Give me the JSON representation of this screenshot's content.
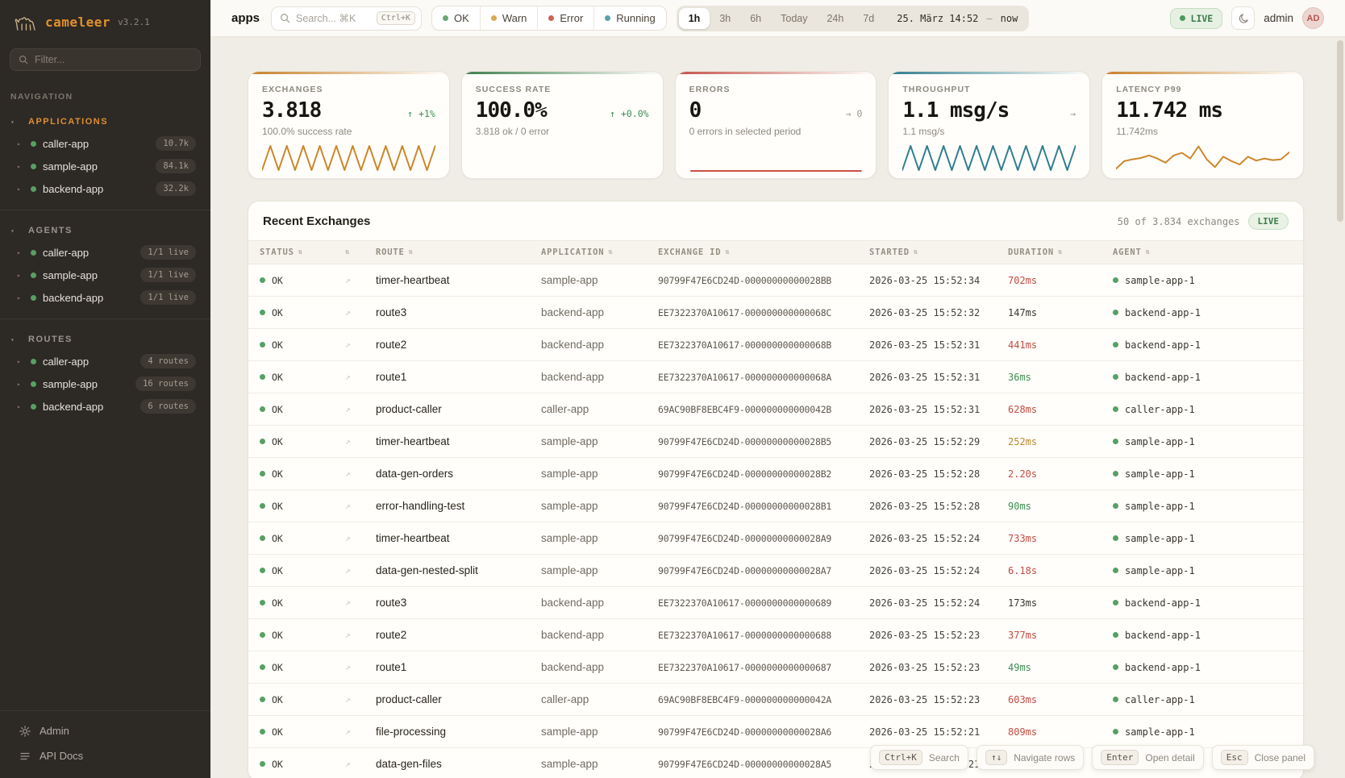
{
  "icons": {
    "sort": "⇅",
    "open_row": "↗",
    "caret_section": "▾",
    "caret_item": "▸"
  },
  "sidebar": {
    "logo": {
      "brand": "cameleer",
      "version": "v3.2.1"
    },
    "filter_placeholder": "Filter...",
    "nav_label": "NAVIGATION",
    "sections": [
      {
        "id": "applications",
        "label": "APPLICATIONS",
        "active": true,
        "items": [
          {
            "name": "caller-app",
            "badge": "10.7k"
          },
          {
            "name": "sample-app",
            "badge": "84.1k"
          },
          {
            "name": "backend-app",
            "badge": "32.2k"
          }
        ]
      },
      {
        "id": "agents",
        "label": "AGENTS",
        "active": false,
        "items": [
          {
            "name": "caller-app",
            "badge": "1/1 live"
          },
          {
            "name": "sample-app",
            "badge": "1/1 live"
          },
          {
            "name": "backend-app",
            "badge": "1/1 live"
          }
        ]
      },
      {
        "id": "routes",
        "label": "ROUTES",
        "active": false,
        "items": [
          {
            "name": "caller-app",
            "badge": "4 routes"
          },
          {
            "name": "sample-app",
            "badge": "16 routes"
          },
          {
            "name": "backend-app",
            "badge": "6 routes"
          }
        ]
      }
    ],
    "footer": [
      {
        "icon": "gear-icon",
        "label": "Admin"
      },
      {
        "icon": "docs-icon",
        "label": "API Docs"
      }
    ]
  },
  "header": {
    "context_label": "apps",
    "search": {
      "placeholder": "Search... ⌘K",
      "shortcut": "Ctrl+K"
    },
    "status_filters": [
      {
        "label": "OK",
        "color": "#6aa574"
      },
      {
        "label": "Warn",
        "color": "#d9a84e"
      },
      {
        "label": "Error",
        "color": "#cc6156"
      },
      {
        "label": "Running",
        "color": "#5b9fae"
      }
    ],
    "time_ranges": [
      {
        "label": "1h",
        "active": true
      },
      {
        "label": "3h",
        "active": false
      },
      {
        "label": "6h",
        "active": false
      },
      {
        "label": "Today",
        "active": false
      },
      {
        "label": "24h",
        "active": false
      },
      {
        "label": "7d",
        "active": false
      }
    ],
    "date_range": {
      "from": "25. März 14:52",
      "separator": "—",
      "to": "now"
    },
    "live_label": "LIVE",
    "user": {
      "name": "admin",
      "initials": "AD"
    }
  },
  "kpis": [
    {
      "label": "EXCHANGES",
      "value": "3.818",
      "delta": "↑ +1%",
      "delta_color": "green",
      "subtitle": "100.0% success rate",
      "accent": "#c8802a",
      "spark": {
        "type": "zigzag",
        "color": "#cc8629"
      }
    },
    {
      "label": "SUCCESS RATE",
      "value": "100.0%",
      "delta": "↑ +0.0%",
      "delta_color": "green",
      "subtitle": "3.818 ok / 0 error",
      "accent": "#3e7d4c",
      "spark": {
        "type": "none",
        "color": ""
      }
    },
    {
      "label": "ERRORS",
      "value": "0",
      "delta": "→ 0",
      "delta_color": "gray",
      "subtitle": "0 errors in selected period",
      "accent": "#c4534a",
      "spark": {
        "type": "flat",
        "color": "#cc4f44"
      }
    },
    {
      "label": "THROUGHPUT",
      "value": "1.1 msg/s",
      "delta": "→",
      "delta_color": "gray",
      "subtitle": "1.1 msg/s",
      "accent": "#2f7e8e",
      "spark": {
        "type": "zigzag",
        "color": "#2f7e8e"
      }
    },
    {
      "label": "LATENCY P99",
      "value": "11.742 ms",
      "delta": "",
      "delta_color": "gray",
      "subtitle": "11.742ms",
      "accent": "#c8802a",
      "spark": {
        "type": "line",
        "color": "#cc8629",
        "points": [
          0.92,
          0.62,
          0.55,
          0.5,
          0.4,
          0.52,
          0.68,
          0.4,
          0.3,
          0.52,
          0.05,
          0.55,
          0.85,
          0.45,
          0.62,
          0.75,
          0.45,
          0.6,
          0.52,
          0.58,
          0.55,
          0.28
        ]
      }
    }
  ],
  "table": {
    "title": "Recent Exchanges",
    "summary": "50 of 3.834 exchanges",
    "live_label": "LIVE",
    "columns": [
      "STATUS",
      "",
      "ROUTE",
      "APPLICATION",
      "EXCHANGE ID",
      "STARTED",
      "DURATION",
      "AGENT"
    ],
    "rows": [
      {
        "status": "OK",
        "route": "timer-heartbeat",
        "application": "sample-app",
        "exchange_id": "90799F47E6CD24D-00000000000028BB",
        "started": "2026-03-25 15:52:34",
        "duration": "702ms",
        "duration_color": "red",
        "agent": "sample-app-1"
      },
      {
        "status": "OK",
        "route": "route3",
        "application": "backend-app",
        "exchange_id": "EE7322370A10617-000000000000068C",
        "started": "2026-03-25 15:52:32",
        "duration": "147ms",
        "duration_color": "default",
        "agent": "backend-app-1"
      },
      {
        "status": "OK",
        "route": "route2",
        "application": "backend-app",
        "exchange_id": "EE7322370A10617-000000000000068B",
        "started": "2026-03-25 15:52:31",
        "duration": "441ms",
        "duration_color": "red",
        "agent": "backend-app-1"
      },
      {
        "status": "OK",
        "route": "route1",
        "application": "backend-app",
        "exchange_id": "EE7322370A10617-000000000000068A",
        "started": "2026-03-25 15:52:31",
        "duration": "36ms",
        "duration_color": "green",
        "agent": "backend-app-1"
      },
      {
        "status": "OK",
        "route": "product-caller",
        "application": "caller-app",
        "exchange_id": "69AC90BF8EBC4F9-000000000000042B",
        "started": "2026-03-25 15:52:31",
        "duration": "628ms",
        "duration_color": "red",
        "agent": "caller-app-1"
      },
      {
        "status": "OK",
        "route": "timer-heartbeat",
        "application": "sample-app",
        "exchange_id": "90799F47E6CD24D-00000000000028B5",
        "started": "2026-03-25 15:52:29",
        "duration": "252ms",
        "duration_color": "amber",
        "agent": "sample-app-1"
      },
      {
        "status": "OK",
        "route": "data-gen-orders",
        "application": "sample-app",
        "exchange_id": "90799F47E6CD24D-00000000000028B2",
        "started": "2026-03-25 15:52:28",
        "duration": "2.20s",
        "duration_color": "red",
        "agent": "sample-app-1"
      },
      {
        "status": "OK",
        "route": "error-handling-test",
        "application": "sample-app",
        "exchange_id": "90799F47E6CD24D-00000000000028B1",
        "started": "2026-03-25 15:52:28",
        "duration": "90ms",
        "duration_color": "green",
        "agent": "sample-app-1"
      },
      {
        "status": "OK",
        "route": "timer-heartbeat",
        "application": "sample-app",
        "exchange_id": "90799F47E6CD24D-00000000000028A9",
        "started": "2026-03-25 15:52:24",
        "duration": "733ms",
        "duration_color": "red",
        "agent": "sample-app-1"
      },
      {
        "status": "OK",
        "route": "data-gen-nested-split",
        "application": "sample-app",
        "exchange_id": "90799F47E6CD24D-00000000000028A7",
        "started": "2026-03-25 15:52:24",
        "duration": "6.18s",
        "duration_color": "red",
        "agent": "sample-app-1"
      },
      {
        "status": "OK",
        "route": "route3",
        "application": "backend-app",
        "exchange_id": "EE7322370A10617-0000000000000689",
        "started": "2026-03-25 15:52:24",
        "duration": "173ms",
        "duration_color": "default",
        "agent": "backend-app-1"
      },
      {
        "status": "OK",
        "route": "route2",
        "application": "backend-app",
        "exchange_id": "EE7322370A10617-0000000000000688",
        "started": "2026-03-25 15:52:23",
        "duration": "377ms",
        "duration_color": "red",
        "agent": "backend-app-1"
      },
      {
        "status": "OK",
        "route": "route1",
        "application": "backend-app",
        "exchange_id": "EE7322370A10617-0000000000000687",
        "started": "2026-03-25 15:52:23",
        "duration": "49ms",
        "duration_color": "green",
        "agent": "backend-app-1"
      },
      {
        "status": "OK",
        "route": "product-caller",
        "application": "caller-app",
        "exchange_id": "69AC90BF8EBC4F9-000000000000042A",
        "started": "2026-03-25 15:52:23",
        "duration": "603ms",
        "duration_color": "red",
        "agent": "caller-app-1"
      },
      {
        "status": "OK",
        "route": "file-processing",
        "application": "sample-app",
        "exchange_id": "90799F47E6CD24D-00000000000028A6",
        "started": "2026-03-25 15:52:21",
        "duration": "809ms",
        "duration_color": "red",
        "agent": "sample-app-1"
      },
      {
        "status": "OK",
        "route": "data-gen-files",
        "application": "sample-app",
        "exchange_id": "90799F47E6CD24D-00000000000028A5",
        "started": "2026-03-25 15:52:21",
        "duration": "",
        "duration_color": "default",
        "agent": "sample-app-1"
      }
    ]
  },
  "hints": [
    {
      "key": "Ctrl+K",
      "label": "Search"
    },
    {
      "key": "↑↓",
      "label": "Navigate rows"
    },
    {
      "key": "Enter",
      "label": "Open detail"
    },
    {
      "key": "Esc",
      "label": "Close panel"
    }
  ]
}
